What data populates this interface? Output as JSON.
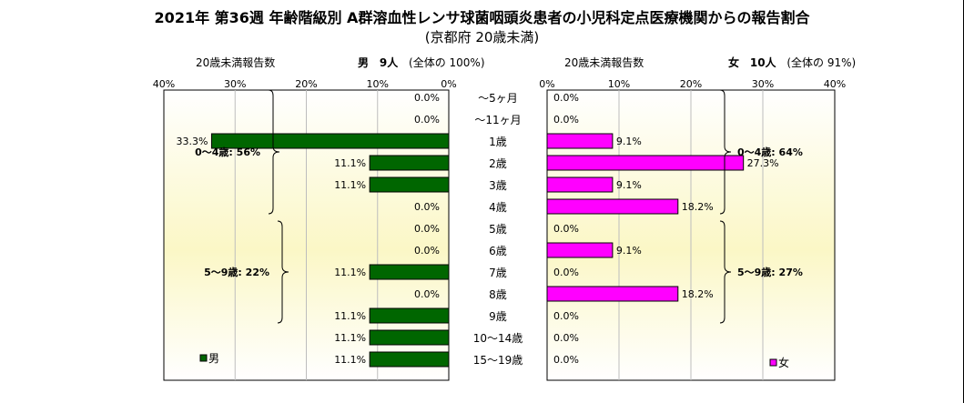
{
  "title": "2021年 第36週 年齢階級別 A群溶血性レンサ球菌咽頭炎患者の小児科定点医療機関からの報告割合",
  "subtitle": "(京都府 20歳未満)",
  "male_header": {
    "label": "20歳未満報告数",
    "sex": "男",
    "count": "9人",
    "share": "(全体の 100%)"
  },
  "female_header": {
    "label": "20歳未満報告数",
    "sex": "女",
    "count": "10人",
    "share": "(全体の 91%)"
  },
  "chart_data": {
    "type": "bar",
    "orientation": "horizontal-butterfly",
    "categories": [
      "～5ヶ月",
      "～11ヶ月",
      "1歳",
      "2歳",
      "3歳",
      "4歳",
      "5歳",
      "6歳",
      "7歳",
      "8歳",
      "9歳",
      "10～14歳",
      "15～19歳"
    ],
    "xlim": [
      0,
      40
    ],
    "x_ticks": [
      "0%",
      "10%",
      "20%",
      "30%",
      "40%"
    ],
    "series": [
      {
        "name": "男",
        "color": "#006600",
        "values": [
          0.0,
          0.0,
          33.3,
          11.1,
          11.1,
          0.0,
          0.0,
          0.0,
          11.1,
          0.0,
          11.1,
          11.1,
          11.1
        ],
        "labels": [
          "0.0%",
          "0.0%",
          "33.3%",
          "11.1%",
          "11.1%",
          "0.0%",
          "0.0%",
          "0.0%",
          "11.1%",
          "0.0%",
          "11.1%",
          "11.1%",
          "11.1%"
        ],
        "brackets": [
          {
            "text": "0～4歳: 56%",
            "from": 0,
            "to": 5
          },
          {
            "text": "5～9歳: 22%",
            "from": 6,
            "to": 10
          }
        ]
      },
      {
        "name": "女",
        "color": "#ff00ff",
        "values": [
          0.0,
          0.0,
          9.1,
          27.3,
          9.1,
          18.2,
          0.0,
          9.1,
          0.0,
          18.2,
          0.0,
          0.0,
          0.0
        ],
        "labels": [
          "0.0%",
          "0.0%",
          "9.1%",
          "27.3%",
          "9.1%",
          "18.2%",
          "0.0%",
          "9.1%",
          "0.0%",
          "18.2%",
          "0.0%",
          "0.0%",
          "0.0%"
        ],
        "brackets": [
          {
            "text": "0～4歳: 64%",
            "from": 0,
            "to": 5
          },
          {
            "text": "5～9歳: 27%",
            "from": 6,
            "to": 10
          }
        ]
      }
    ],
    "legend_placement": "bottom-left of each panel",
    "grid": true
  }
}
